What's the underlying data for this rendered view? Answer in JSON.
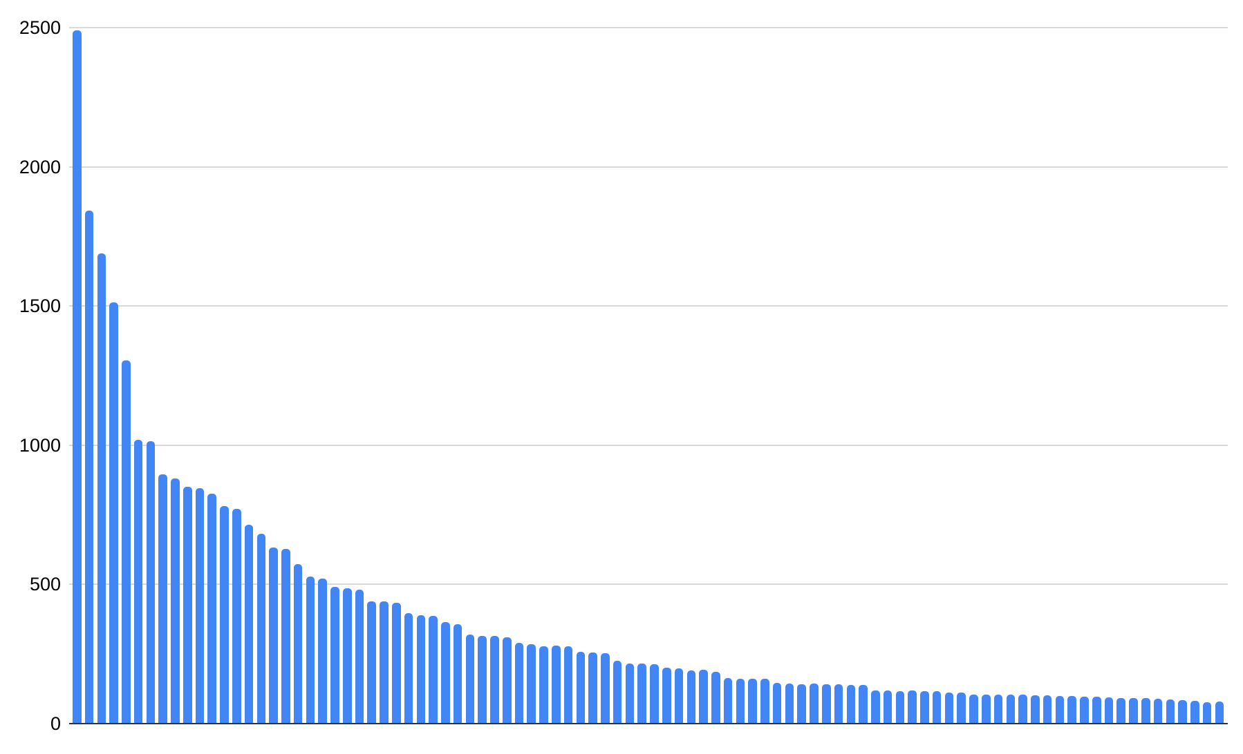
{
  "chart_data": {
    "type": "bar",
    "title": "",
    "xlabel": "",
    "ylabel": "",
    "x_axis_labels_visible": false,
    "legend": false,
    "grid": true,
    "ylim": [
      0,
      2500
    ],
    "yticks": [
      0,
      500,
      1000,
      1500,
      2000,
      2500
    ],
    "ytick_labels": [
      "0",
      "500",
      "1000",
      "1500",
      "2000",
      "2500"
    ],
    "bar_count": 94,
    "values": [
      2490,
      1843,
      1688,
      1514,
      1305,
      1020,
      1014,
      896,
      881,
      851,
      846,
      826,
      781,
      771,
      714,
      681,
      633,
      627,
      572,
      528,
      521,
      492,
      485,
      480,
      439,
      438,
      435,
      396,
      389,
      388,
      365,
      357,
      320,
      315,
      314,
      309,
      291,
      285,
      279,
      281,
      277,
      259,
      255,
      254,
      225,
      216,
      215,
      214,
      202,
      198,
      192,
      193,
      187,
      163,
      162,
      162,
      162,
      146,
      143,
      142,
      143,
      142,
      141,
      139,
      138,
      120,
      119,
      117,
      118,
      117,
      116,
      111,
      112,
      105,
      104,
      104,
      103,
      103,
      102,
      101,
      100,
      99,
      98,
      97,
      95,
      93,
      92,
      91,
      89,
      87,
      85,
      83,
      78,
      80
    ],
    "colors": {
      "bar": "#4285f4",
      "gridline": "#d9d9d9",
      "axis_line": "#333333",
      "tick_label": "#000000",
      "background": "#ffffff"
    }
  }
}
